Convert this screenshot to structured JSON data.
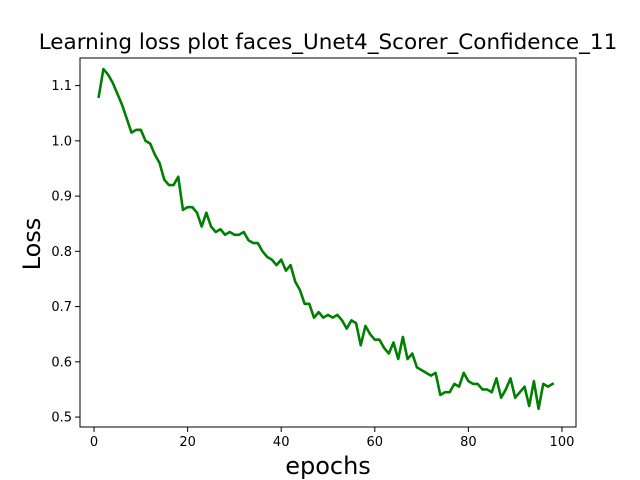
{
  "chart_data": {
    "type": "line",
    "title": "Learning loss plot faces_Unet4_Scorer_Confidence_11",
    "xlabel": "epochs",
    "ylabel": "Loss",
    "xlim": [
      -3,
      103
    ],
    "ylim": [
      0.482,
      1.15
    ],
    "xticks": [
      0,
      20,
      40,
      60,
      80,
      100
    ],
    "yticks": [
      0.5,
      0.6,
      0.7,
      0.8,
      0.9,
      1.0,
      1.1
    ],
    "xtick_labels": [
      "0",
      "20",
      "40",
      "60",
      "80",
      "100"
    ],
    "ytick_labels": [
      "0.5",
      "0.6",
      "0.7",
      "0.8",
      "0.9",
      "1.0",
      "1.1"
    ],
    "grid": false,
    "series": [
      {
        "color": "#008000",
        "x": [
          1,
          2,
          3,
          4,
          5,
          6,
          7,
          8,
          9,
          10,
          11,
          12,
          13,
          14,
          15,
          16,
          17,
          18,
          19,
          20,
          21,
          22,
          23,
          24,
          25,
          26,
          27,
          28,
          29,
          30,
          31,
          32,
          33,
          34,
          35,
          36,
          37,
          38,
          39,
          40,
          41,
          42,
          43,
          44,
          45,
          46,
          47,
          48,
          49,
          50,
          51,
          52,
          53,
          54,
          55,
          56,
          57,
          58,
          59,
          60,
          61,
          62,
          63,
          64,
          65,
          66,
          67,
          68,
          69,
          70,
          71,
          72,
          73,
          74,
          75,
          76,
          77,
          78,
          79,
          80,
          81,
          82,
          83,
          84,
          85,
          86,
          87,
          88,
          89,
          90,
          91,
          92,
          93,
          94,
          95,
          96,
          97,
          98
        ],
        "y": [
          1.08,
          1.13,
          1.12,
          1.105,
          1.085,
          1.065,
          1.04,
          1.015,
          1.02,
          1.02,
          1.0,
          0.995,
          0.975,
          0.96,
          0.93,
          0.92,
          0.92,
          0.935,
          0.875,
          0.88,
          0.88,
          0.87,
          0.845,
          0.87,
          0.845,
          0.835,
          0.84,
          0.83,
          0.835,
          0.83,
          0.83,
          0.835,
          0.82,
          0.815,
          0.815,
          0.8,
          0.79,
          0.785,
          0.775,
          0.785,
          0.765,
          0.775,
          0.745,
          0.73,
          0.705,
          0.705,
          0.68,
          0.69,
          0.68,
          0.685,
          0.68,
          0.685,
          0.675,
          0.66,
          0.675,
          0.67,
          0.63,
          0.665,
          0.65,
          0.64,
          0.64,
          0.625,
          0.615,
          0.635,
          0.605,
          0.645,
          0.605,
          0.615,
          0.59,
          0.585,
          0.58,
          0.575,
          0.58,
          0.54,
          0.545,
          0.545,
          0.56,
          0.555,
          0.58,
          0.565,
          0.56,
          0.56,
          0.55,
          0.55,
          0.545,
          0.57,
          0.535,
          0.55,
          0.57,
          0.535,
          0.545,
          0.555,
          0.52,
          0.565,
          0.515,
          0.56,
          0.555,
          0.56
        ]
      }
    ]
  }
}
